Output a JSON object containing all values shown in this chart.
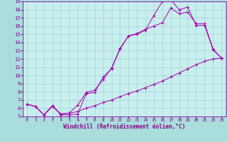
{
  "bg_color": "#aadddd",
  "plot_bg": "#c8eeee",
  "line_color": "#aa00aa",
  "xlabel": "Windchill (Refroidissement éolien,°C)",
  "xlim": [
    -0.5,
    23.5
  ],
  "ylim": [
    5,
    19
  ],
  "line1_x": [
    0,
    1,
    2,
    3,
    4,
    5,
    6,
    7,
    8,
    9,
    10,
    11,
    12,
    13,
    14,
    15,
    16,
    17,
    18,
    19,
    20,
    21,
    22,
    23
  ],
  "line1_y": [
    6.5,
    6.2,
    5.2,
    6.3,
    5.2,
    5.2,
    5.3,
    7.8,
    7.9,
    9.8,
    10.8,
    13.2,
    14.8,
    15.0,
    15.5,
    17.3,
    19.0,
    19.2,
    18.0,
    18.3,
    16.1,
    16.1,
    13.1,
    12.1
  ],
  "line2_x": [
    0,
    1,
    2,
    3,
    4,
    5,
    6,
    7,
    8,
    9,
    10,
    11,
    12,
    13,
    14,
    15,
    16,
    17,
    18,
    19,
    20,
    21,
    22,
    23
  ],
  "line2_y": [
    6.5,
    6.2,
    5.2,
    6.3,
    5.3,
    5.4,
    6.4,
    7.9,
    8.2,
    9.5,
    10.9,
    13.3,
    14.8,
    15.1,
    15.6,
    16.0,
    16.4,
    18.2,
    17.5,
    17.7,
    16.3,
    16.3,
    13.2,
    12.1
  ],
  "line3_x": [
    0,
    1,
    2,
    3,
    4,
    5,
    6,
    7,
    8,
    9,
    10,
    11,
    12,
    13,
    14,
    15,
    16,
    17,
    18,
    19,
    20,
    21,
    22,
    23
  ],
  "line3_y": [
    6.5,
    6.2,
    5.2,
    6.2,
    5.3,
    5.4,
    5.6,
    6.0,
    6.3,
    6.7,
    7.0,
    7.4,
    7.8,
    8.1,
    8.5,
    8.9,
    9.3,
    9.8,
    10.3,
    10.8,
    11.3,
    11.7,
    12.0,
    12.1
  ],
  "tick_color": "#880088",
  "grid_color": "#99cccc",
  "spine_color": "#8800aa"
}
